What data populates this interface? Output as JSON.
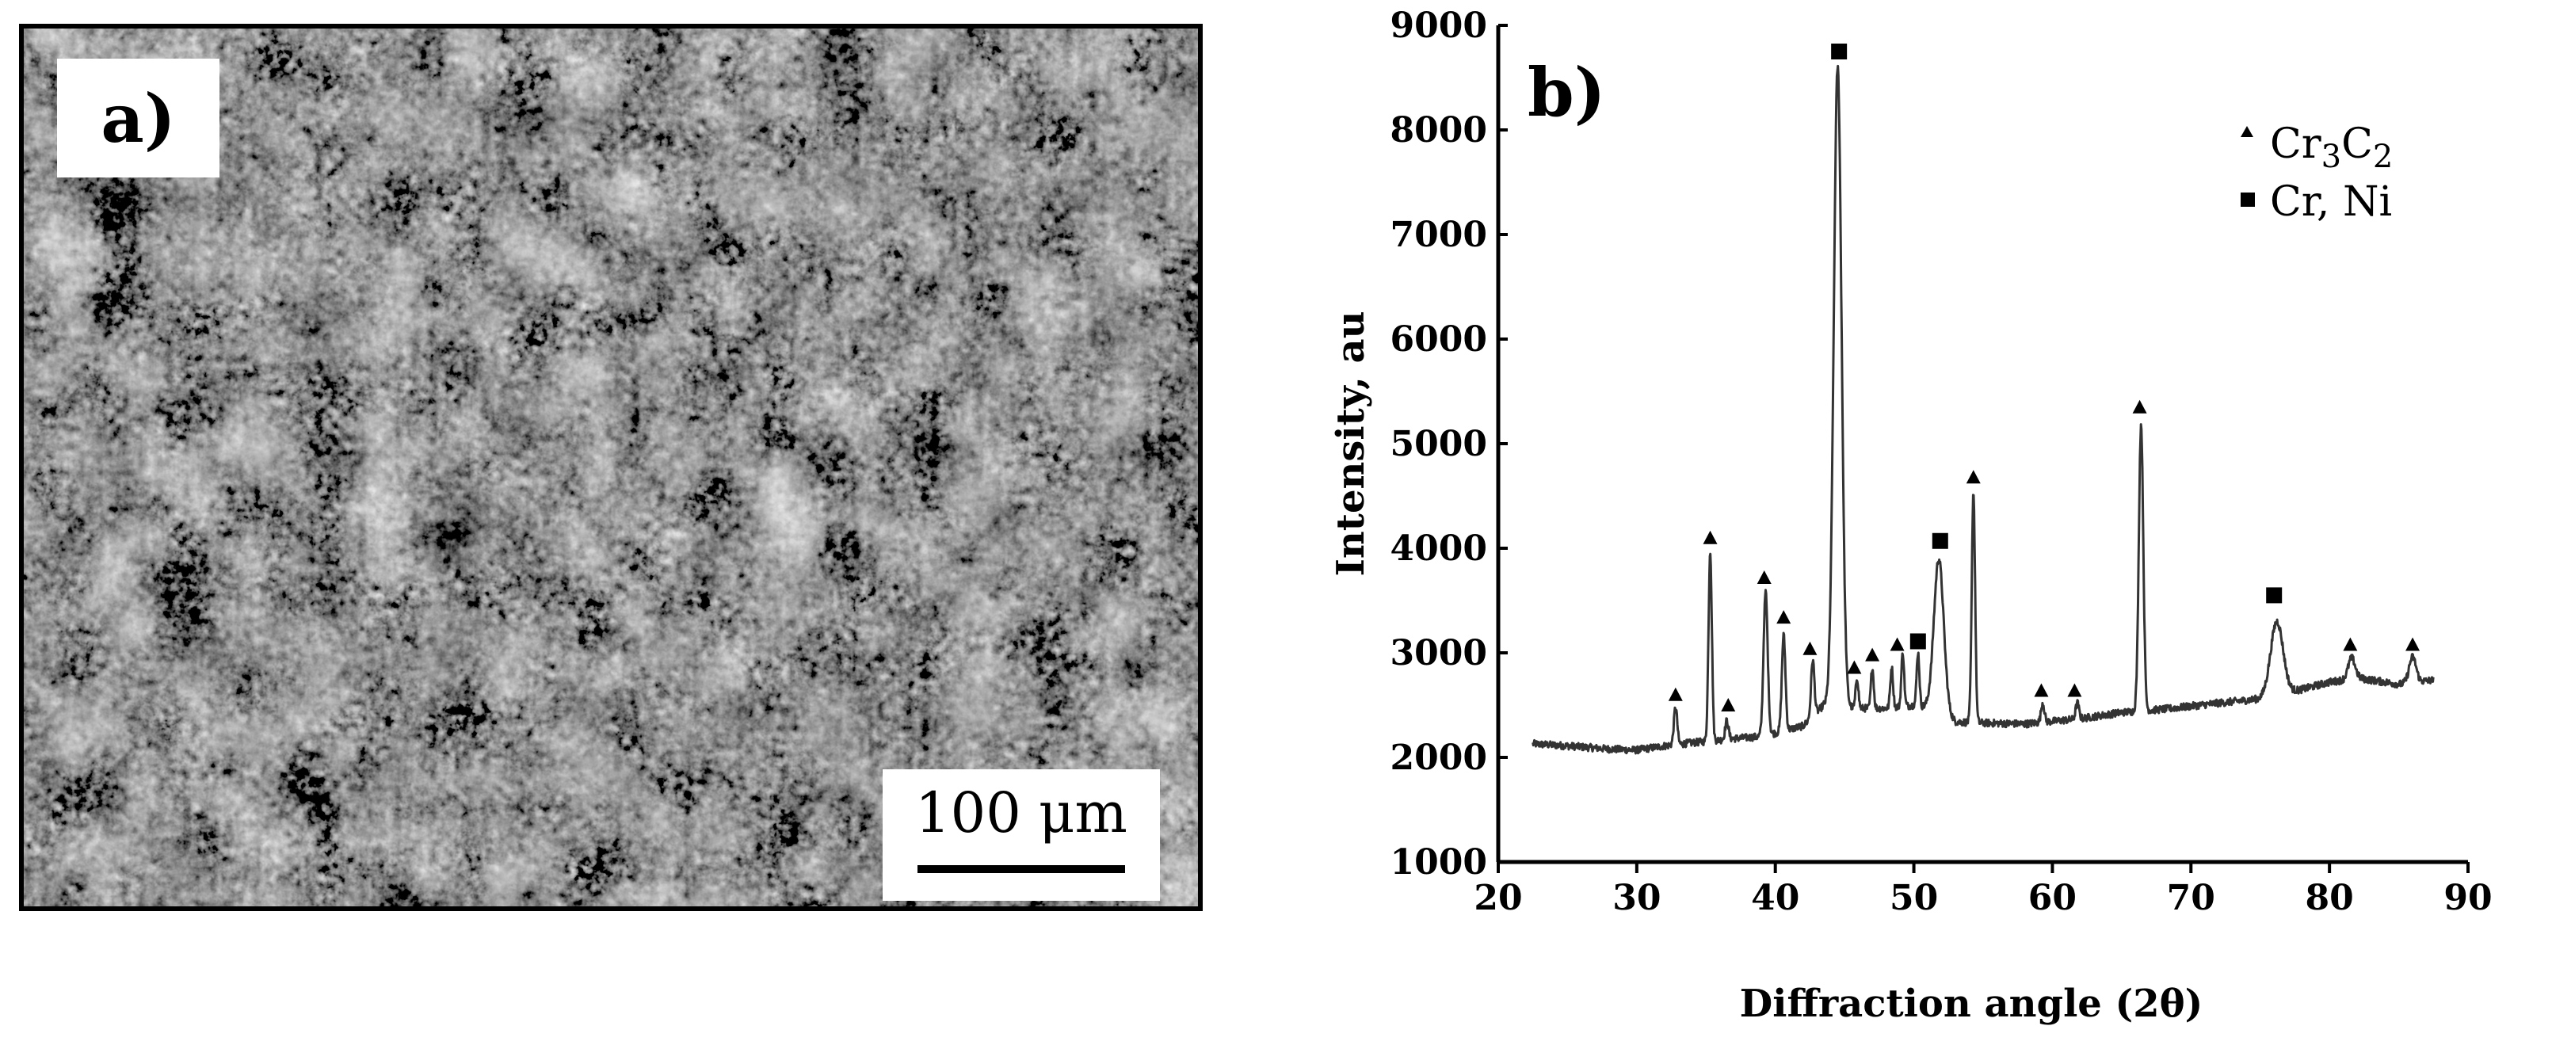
{
  "panel_a": {
    "label": "a)",
    "scale_bar_text": "100 μm"
  },
  "panel_b": {
    "label": "b)"
  },
  "chart_data": {
    "type": "line",
    "xlabel": "Diffraction angle (2θ)",
    "ylabel": "Intensity, au",
    "xlim": [
      20,
      90
    ],
    "ylim": [
      1000,
      9000
    ],
    "x_ticks": [
      20,
      30,
      40,
      50,
      60,
      70,
      80,
      90
    ],
    "y_ticks": [
      1000,
      2000,
      3000,
      4000,
      5000,
      6000,
      7000,
      8000,
      9000
    ],
    "grid": false,
    "legend_position": "top-right",
    "legend": [
      {
        "marker": "triangle",
        "label_main": "Cr",
        "sub1": "3",
        "label_mid": "C",
        "sub2": "2"
      },
      {
        "marker": "square",
        "label_main": "Cr, Ni"
      }
    ],
    "line_color": "#333333",
    "baseline": [
      [
        22.5,
        2130
      ],
      [
        25,
        2110
      ],
      [
        28,
        2080
      ],
      [
        30,
        2070
      ],
      [
        32,
        2110
      ],
      [
        34,
        2140
      ],
      [
        37,
        2180
      ],
      [
        39,
        2200
      ],
      [
        42,
        2300
      ],
      [
        43.5,
        2500
      ],
      [
        46,
        2470
      ],
      [
        48,
        2470
      ],
      [
        50,
        2500
      ],
      [
        52,
        2450
      ],
      [
        53,
        2340
      ],
      [
        55,
        2330
      ],
      [
        58,
        2320
      ],
      [
        62,
        2370
      ],
      [
        65,
        2430
      ],
      [
        68,
        2460
      ],
      [
        72,
        2520
      ],
      [
        75,
        2560
      ],
      [
        78,
        2650
      ],
      [
        80,
        2720
      ],
      [
        82,
        2760
      ],
      [
        85,
        2700
      ],
      [
        87.5,
        2740
      ]
    ],
    "peaks": [
      {
        "x": 32.8,
        "y": 2480,
        "w": 0.12,
        "phase": "Cr3C2"
      },
      {
        "x": 35.3,
        "y": 3980,
        "w": 0.12,
        "phase": "Cr3C2"
      },
      {
        "x": 36.5,
        "y": 2350,
        "w": 0.12,
        "phase": "Cr3C2"
      },
      {
        "x": 39.3,
        "y": 3580,
        "w": 0.15,
        "phase": "Cr3C2"
      },
      {
        "x": 40.6,
        "y": 3170,
        "w": 0.13,
        "phase": "Cr3C2"
      },
      {
        "x": 42.7,
        "y": 2930,
        "w": 0.12,
        "phase": "Cr3C2"
      },
      {
        "x": 44.5,
        "y": 8600,
        "w": 0.28,
        "phase": "Cr, Ni"
      },
      {
        "x": 45.9,
        "y": 2760,
        "w": 0.1,
        "phase": "Cr3C2"
      },
      {
        "x": 47.0,
        "y": 2860,
        "w": 0.1,
        "phase": "Cr3C2"
      },
      {
        "x": 48.4,
        "y": 2860,
        "w": 0.1,
        "phase": "Cr3C2"
      },
      {
        "x": 49.2,
        "y": 3000,
        "w": 0.1,
        "phase": "Cr3C2"
      },
      {
        "x": 50.3,
        "y": 3000,
        "w": 0.1,
        "phase": "Cr, Ni"
      },
      {
        "x": 51.8,
        "y": 3900,
        "w": 0.35,
        "phase": "Cr, Ni"
      },
      {
        "x": 54.3,
        "y": 4540,
        "w": 0.12,
        "phase": "Cr3C2"
      },
      {
        "x": 59.3,
        "y": 2520,
        "w": 0.12,
        "phase": "Cr3C2"
      },
      {
        "x": 61.8,
        "y": 2520,
        "w": 0.12,
        "phase": "Cr3C2"
      },
      {
        "x": 66.4,
        "y": 5180,
        "w": 0.16,
        "phase": "Cr3C2"
      },
      {
        "x": 76.2,
        "y": 3300,
        "w": 0.45,
        "phase": "Cr, Ni"
      },
      {
        "x": 81.6,
        "y": 2950,
        "w": 0.25,
        "phase": "Cr3C2"
      },
      {
        "x": 86.0,
        "y": 2960,
        "w": 0.25,
        "phase": "Cr3C2"
      }
    ],
    "markers": [
      {
        "x": 32.8,
        "y": 2600,
        "type": "triangle"
      },
      {
        "x": 35.3,
        "y": 4100,
        "type": "triangle"
      },
      {
        "x": 36.6,
        "y": 2500,
        "type": "triangle"
      },
      {
        "x": 39.2,
        "y": 3720,
        "type": "triangle"
      },
      {
        "x": 40.6,
        "y": 3340,
        "type": "triangle"
      },
      {
        "x": 42.5,
        "y": 3040,
        "type": "triangle"
      },
      {
        "x": 44.6,
        "y": 8750,
        "type": "square"
      },
      {
        "x": 45.7,
        "y": 2860,
        "type": "triangle"
      },
      {
        "x": 47.0,
        "y": 2980,
        "type": "triangle"
      },
      {
        "x": 48.8,
        "y": 3080,
        "type": "triangle"
      },
      {
        "x": 50.3,
        "y": 3110,
        "type": "square"
      },
      {
        "x": 51.9,
        "y": 4070,
        "type": "square"
      },
      {
        "x": 54.3,
        "y": 4680,
        "type": "triangle"
      },
      {
        "x": 59.2,
        "y": 2640,
        "type": "triangle"
      },
      {
        "x": 61.6,
        "y": 2640,
        "type": "triangle"
      },
      {
        "x": 66.3,
        "y": 5350,
        "type": "triangle"
      },
      {
        "x": 76.0,
        "y": 3550,
        "type": "square"
      },
      {
        "x": 81.5,
        "y": 3080,
        "type": "triangle"
      },
      {
        "x": 86.0,
        "y": 3080,
        "type": "triangle"
      }
    ]
  }
}
